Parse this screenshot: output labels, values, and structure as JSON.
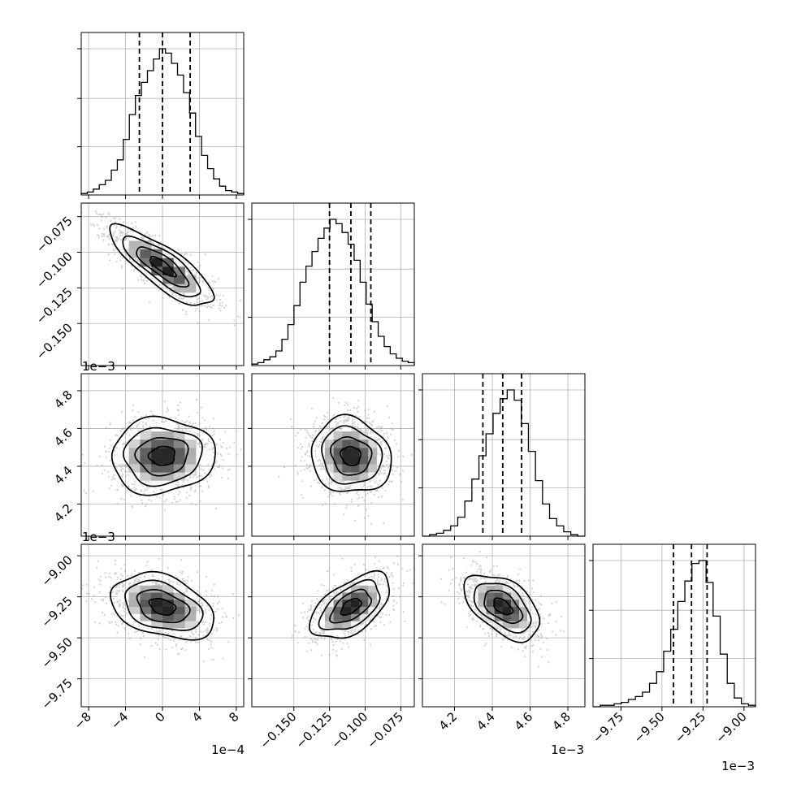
{
  "figure": {
    "type": "corner plot",
    "params": 4
  },
  "offsets": {
    "p0": "1e−4",
    "p1": "",
    "p2": "1e−3",
    "p3": "1e−3"
  },
  "ticks": {
    "p0": {
      "values": [
        -8,
        -4,
        0,
        4,
        8
      ],
      "labels": [
        "−8",
        "−4",
        "0",
        "4",
        "8"
      ]
    },
    "p1": {
      "values": [
        -0.15,
        -0.125,
        -0.1,
        -0.075
      ],
      "labels": [
        "−0.150",
        "−0.125",
        "−0.100",
        "−0.075"
      ]
    },
    "p2": {
      "values": [
        4.2,
        4.4,
        4.6,
        4.8
      ],
      "labels": [
        "4.2",
        "4.4",
        "4.6",
        "4.8"
      ]
    },
    "p3": {
      "values": [
        -9.75,
        -9.5,
        -9.25,
        -9.0
      ],
      "labels": [
        "−9.75",
        "−9.50",
        "−9.25",
        "−9.00"
      ]
    }
  },
  "chart_data": {
    "type": "corner",
    "parameters": [
      {
        "range": [
          -8.8,
          8.8
        ],
        "quantiles": [
          -2.5,
          0.0,
          3.0
        ],
        "hist": [
          0.01,
          0.02,
          0.04,
          0.07,
          0.1,
          0.17,
          0.24,
          0.38,
          0.55,
          0.68,
          0.77,
          0.85,
          0.93,
          1.0,
          0.97,
          0.9,
          0.82,
          0.7,
          0.56,
          0.4,
          0.27,
          0.18,
          0.11,
          0.06,
          0.03,
          0.02,
          0.01
        ]
      },
      {
        "range": [
          -0.1795,
          -0.0655
        ],
        "quantiles": [
          -0.125,
          -0.11,
          -0.096
        ],
        "hist": [
          0.01,
          0.02,
          0.04,
          0.06,
          0.1,
          0.18,
          0.28,
          0.41,
          0.57,
          0.68,
          0.78,
          0.87,
          0.94,
          1.0,
          0.97,
          0.91,
          0.83,
          0.72,
          0.57,
          0.42,
          0.3,
          0.2,
          0.13,
          0.08,
          0.05,
          0.03,
          0.02
        ]
      },
      {
        "range": [
          4.03,
          4.89
        ],
        "quantiles": [
          4.35,
          4.455,
          4.555
        ],
        "hist": [
          0.0,
          0.01,
          0.02,
          0.04,
          0.07,
          0.13,
          0.24,
          0.39,
          0.55,
          0.7,
          0.84,
          0.94,
          1.0,
          0.93,
          0.77,
          0.58,
          0.38,
          0.22,
          0.12,
          0.07,
          0.03,
          0.01,
          0.0
        ]
      },
      {
        "range": [
          -9.92,
          -8.93
        ],
        "quantiles": [
          -9.43,
          -9.32,
          -9.225
        ],
        "hist": [
          0.0,
          0.01,
          0.01,
          0.02,
          0.03,
          0.05,
          0.07,
          0.1,
          0.16,
          0.24,
          0.38,
          0.53,
          0.72,
          0.86,
          0.98,
          1.0,
          0.85,
          0.62,
          0.36,
          0.16,
          0.06,
          0.02,
          0.01
        ]
      }
    ],
    "pairs": [
      {
        "x": 0,
        "y": 1,
        "x_mean": 0.0,
        "x_sd": 2.8,
        "y_mean": -0.11,
        "y_sd": 0.014,
        "corr": -0.82
      },
      {
        "x": 0,
        "y": 2,
        "x_mean": 0.0,
        "x_sd": 2.8,
        "y_mean": 4.455,
        "y_sd": 0.1,
        "corr": 0.05
      },
      {
        "x": 1,
        "y": 2,
        "x_mean": -0.11,
        "x_sd": 0.014,
        "y_mean": 4.455,
        "y_sd": 0.1,
        "corr": -0.1
      },
      {
        "x": 0,
        "y": 3,
        "x_mean": 0.0,
        "x_sd": 2.8,
        "y_mean": -9.31,
        "y_sd": 0.1,
        "corr": -0.35
      },
      {
        "x": 1,
        "y": 3,
        "x_mean": -0.11,
        "x_sd": 0.014,
        "y_mean": -9.31,
        "y_sd": 0.1,
        "corr": 0.55
      },
      {
        "x": 2,
        "y": 3,
        "x_mean": 4.455,
        "x_sd": 0.1,
        "y_mean": -9.31,
        "y_sd": 0.1,
        "corr": -0.5
      }
    ],
    "contour_levels": [
      0.5,
      1.0,
      1.5,
      2.0
    ],
    "grid": true,
    "xlabel": "",
    "ylabel": "",
    "title": ""
  }
}
